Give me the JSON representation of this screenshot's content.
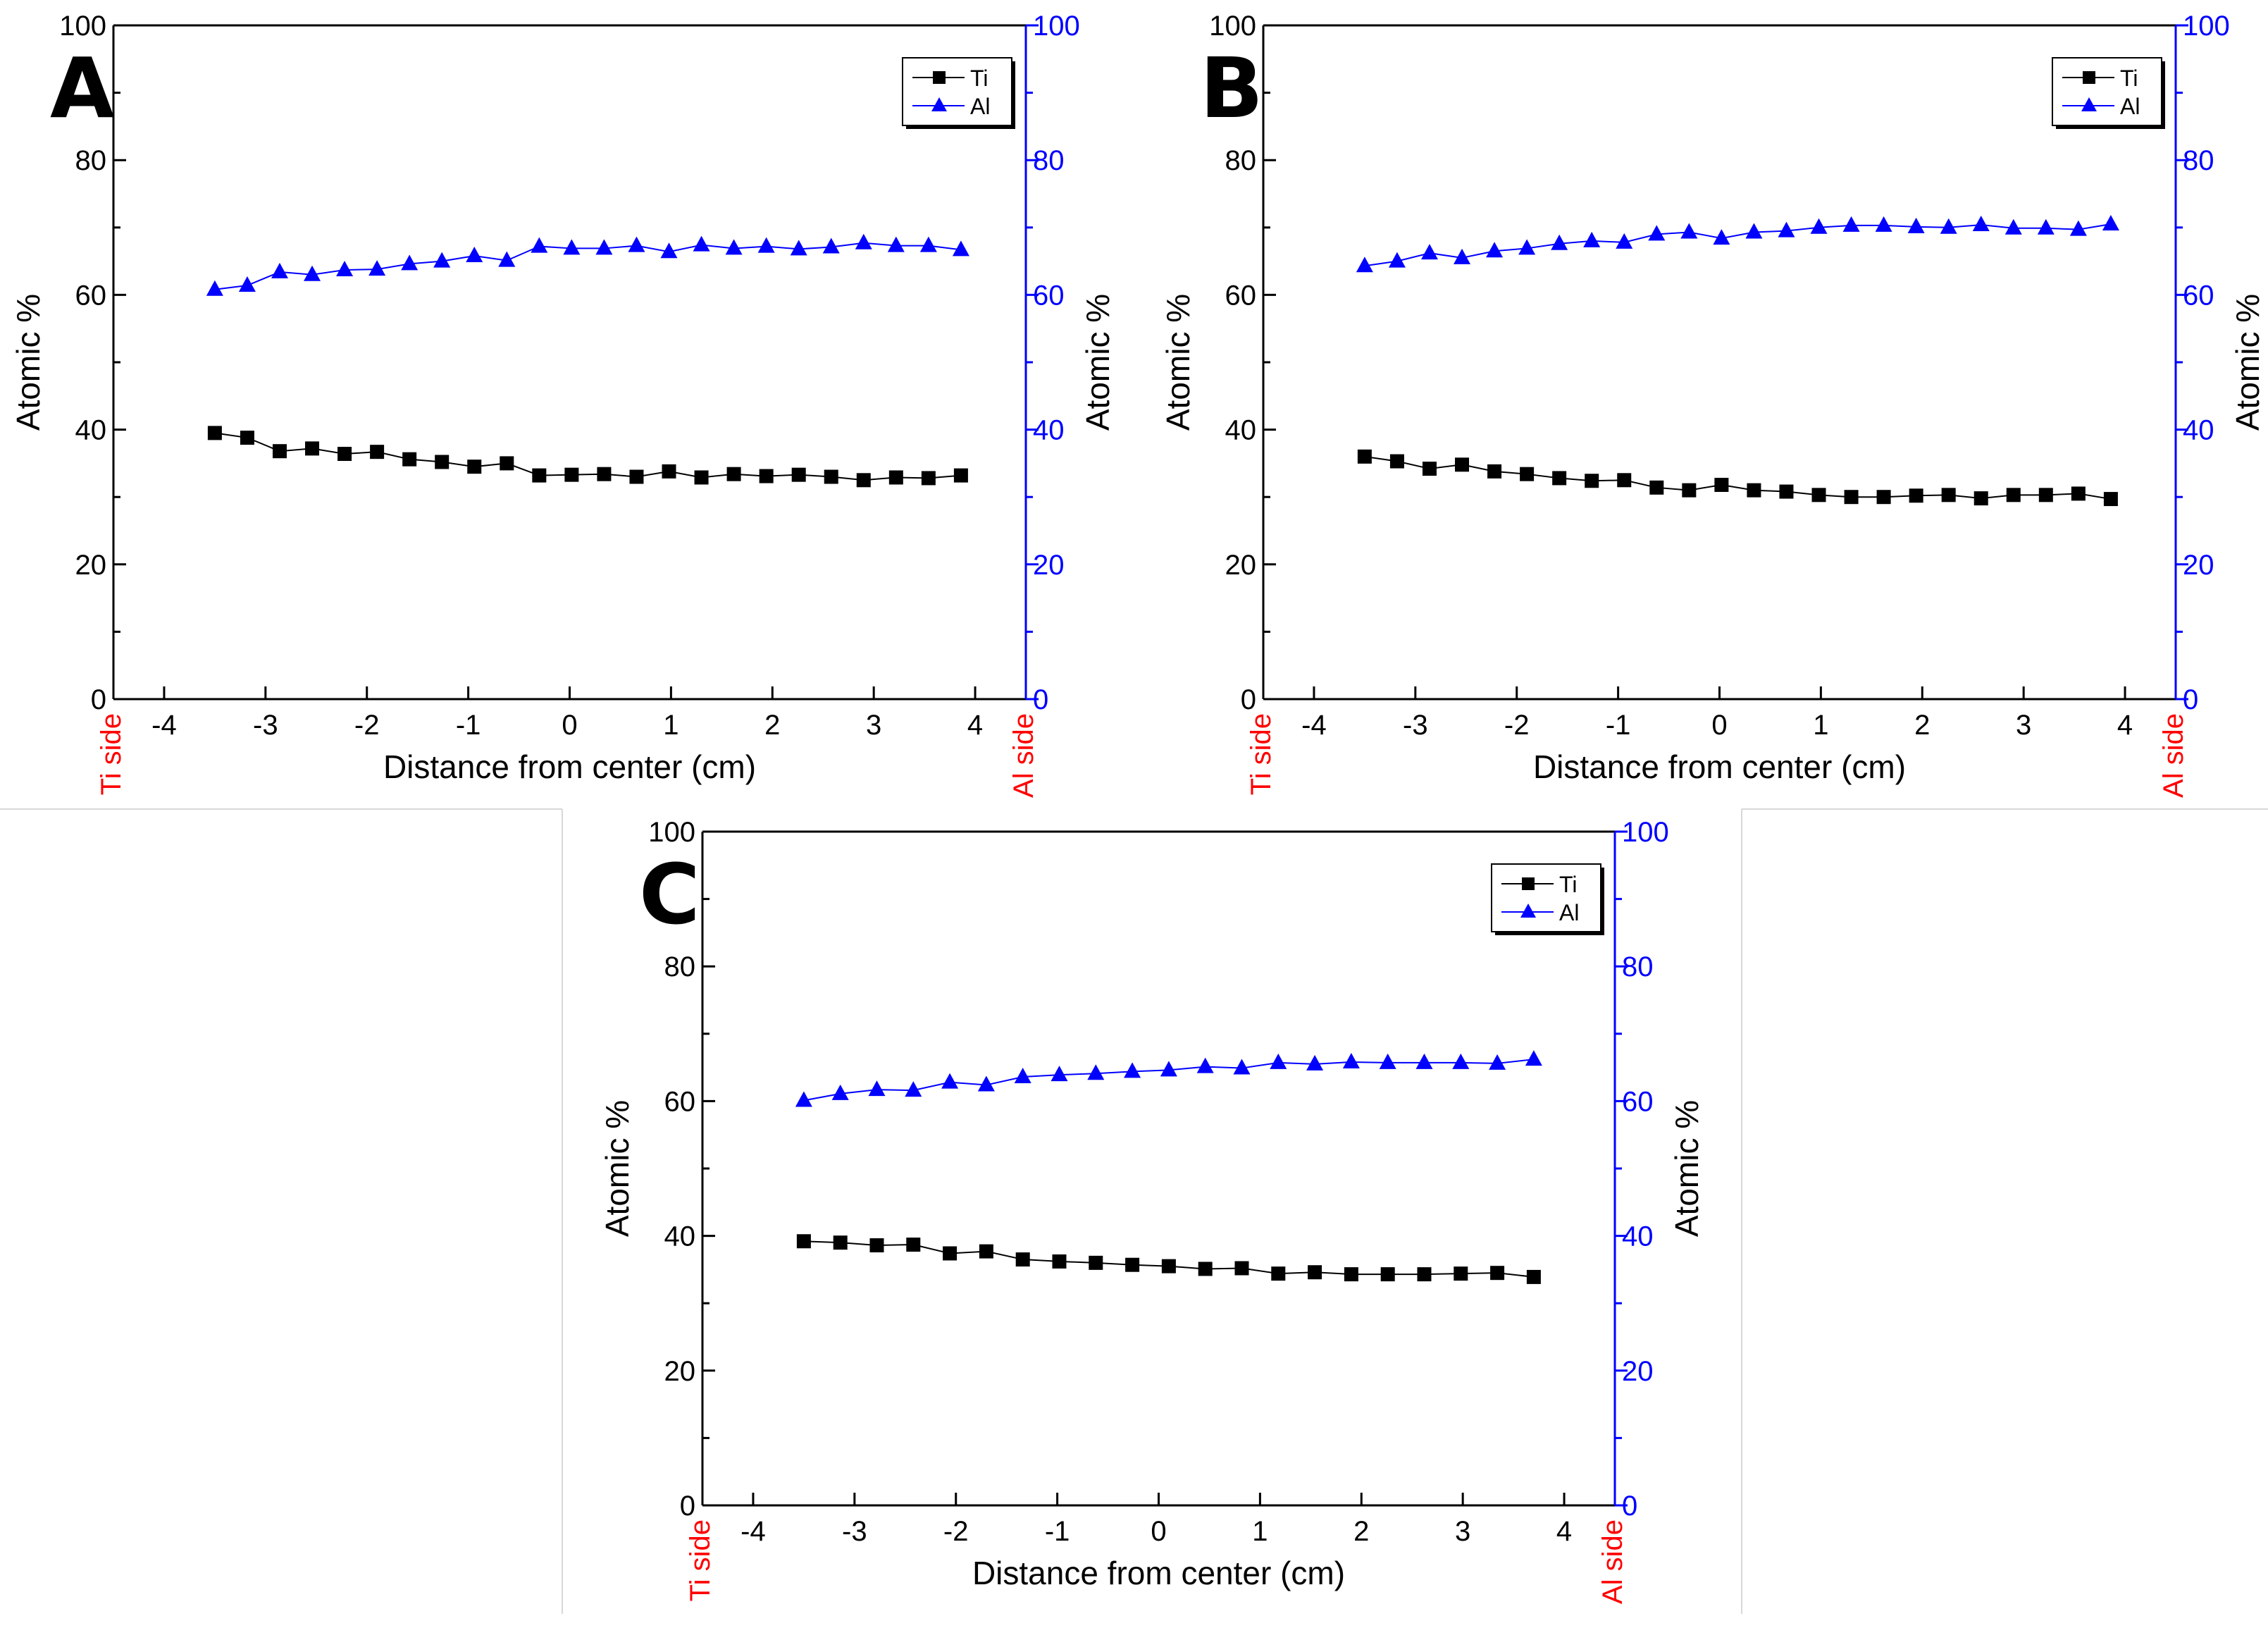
{
  "figure": {
    "colors": {
      "ti": "#000000",
      "al": "#0000ff",
      "side": "#ff0000",
      "axis": "#000000",
      "axis_right": "#0000ff"
    }
  },
  "chart_data": [
    {
      "panel": "A",
      "type": "line",
      "xlabel": "Distance from center (cm)",
      "ylabel_left": "Atomic %",
      "ylabel_right": "Atomic %",
      "xlim": [
        -4.5,
        4.5
      ],
      "ylim": [
        0,
        100
      ],
      "xticks": [
        -4,
        -3,
        -2,
        -1,
        0,
        1,
        2,
        3,
        4
      ],
      "yticks": [
        0,
        20,
        40,
        60,
        80,
        100
      ],
      "side_left": "Ti side",
      "side_right": "Al side",
      "legend_position": "top-right",
      "x": [
        -3.5,
        -3.18,
        -2.86,
        -2.54,
        -2.22,
        -1.9,
        -1.58,
        -1.26,
        -0.94,
        -0.62,
        -0.3,
        0.02,
        0.34,
        0.66,
        0.98,
        1.3,
        1.62,
        1.94,
        2.26,
        2.58,
        2.9,
        3.22,
        3.54,
        3.86
      ],
      "series": [
        {
          "name": "Ti",
          "marker": "square",
          "values": [
            39.5,
            38.8,
            36.8,
            37.2,
            36.4,
            36.7,
            35.6,
            35.2,
            34.5,
            35.0,
            33.2,
            33.3,
            33.4,
            33.0,
            33.8,
            32.9,
            33.4,
            33.1,
            33.3,
            33.0,
            32.5,
            32.9,
            32.8,
            33.2
          ]
        },
        {
          "name": "Al",
          "marker": "triangle",
          "values": [
            60.8,
            61.4,
            63.4,
            63.0,
            63.7,
            63.8,
            64.6,
            65.0,
            65.8,
            65.1,
            67.2,
            66.9,
            66.9,
            67.3,
            66.4,
            67.4,
            66.9,
            67.2,
            66.8,
            67.1,
            67.7,
            67.3,
            67.3,
            66.7
          ]
        }
      ]
    },
    {
      "panel": "B",
      "type": "line",
      "xlabel": "Distance from center (cm)",
      "ylabel_left": "Atomic %",
      "ylabel_right": "Atomic %",
      "xlim": [
        -4.5,
        4.5
      ],
      "ylim": [
        0,
        100
      ],
      "xticks": [
        -4,
        -3,
        -2,
        -1,
        0,
        1,
        2,
        3,
        4
      ],
      "yticks": [
        0,
        20,
        40,
        60,
        80,
        100
      ],
      "side_left": "Ti side",
      "side_right": "Al side",
      "legend_position": "top-right",
      "x": [
        -3.5,
        -3.18,
        -2.86,
        -2.54,
        -2.22,
        -1.9,
        -1.58,
        -1.26,
        -0.94,
        -0.62,
        -0.3,
        0.02,
        0.34,
        0.66,
        0.98,
        1.3,
        1.62,
        1.94,
        2.26,
        2.58,
        2.9,
        3.22,
        3.54,
        3.86
      ],
      "series": [
        {
          "name": "Ti",
          "marker": "square",
          "values": [
            36.0,
            35.3,
            34.2,
            34.8,
            33.8,
            33.4,
            32.8,
            32.4,
            32.5,
            31.4,
            31.0,
            31.8,
            31.0,
            30.8,
            30.3,
            30.0,
            30.0,
            30.2,
            30.3,
            29.8,
            30.3,
            30.3,
            30.5,
            29.7
          ]
        },
        {
          "name": "Al",
          "marker": "triangle",
          "values": [
            64.3,
            65.0,
            66.2,
            65.5,
            66.5,
            66.9,
            67.6,
            68.0,
            67.8,
            69.0,
            69.3,
            68.4,
            69.3,
            69.5,
            70.0,
            70.3,
            70.3,
            70.1,
            70.0,
            70.4,
            69.9,
            69.9,
            69.7,
            70.5
          ]
        }
      ]
    },
    {
      "panel": "C",
      "type": "line",
      "xlabel": "Distance from center (cm)",
      "ylabel_left": "Atomic %",
      "ylabel_right": "Atomic %",
      "xlim": [
        -4.5,
        4.5
      ],
      "ylim": [
        0,
        100
      ],
      "xticks": [
        -4,
        -3,
        -2,
        -1,
        0,
        1,
        2,
        3,
        4
      ],
      "yticks": [
        0,
        20,
        40,
        60,
        80,
        100
      ],
      "side_left": "Ti side",
      "side_right": "Al side",
      "legend_position": "top-right",
      "x": [
        -3.5,
        -3.14,
        -2.78,
        -2.42,
        -2.06,
        -1.7,
        -1.34,
        -0.98,
        -0.62,
        -0.26,
        0.1,
        0.46,
        0.82,
        1.18,
        1.54,
        1.9,
        2.26,
        2.62,
        2.98,
        3.34,
        3.7
      ],
      "series": [
        {
          "name": "Ti",
          "marker": "square",
          "values": [
            39.2,
            39.0,
            38.6,
            38.7,
            37.4,
            37.7,
            36.5,
            36.2,
            36.0,
            35.7,
            35.5,
            35.1,
            35.2,
            34.4,
            34.6,
            34.3,
            34.3,
            34.3,
            34.4,
            34.5,
            33.9
          ]
        },
        {
          "name": "Al",
          "marker": "triangle",
          "values": [
            60.1,
            61.1,
            61.7,
            61.6,
            62.8,
            62.4,
            63.6,
            63.9,
            64.1,
            64.4,
            64.6,
            65.1,
            64.9,
            65.7,
            65.5,
            65.8,
            65.7,
            65.7,
            65.7,
            65.6,
            66.2
          ]
        }
      ]
    }
  ]
}
